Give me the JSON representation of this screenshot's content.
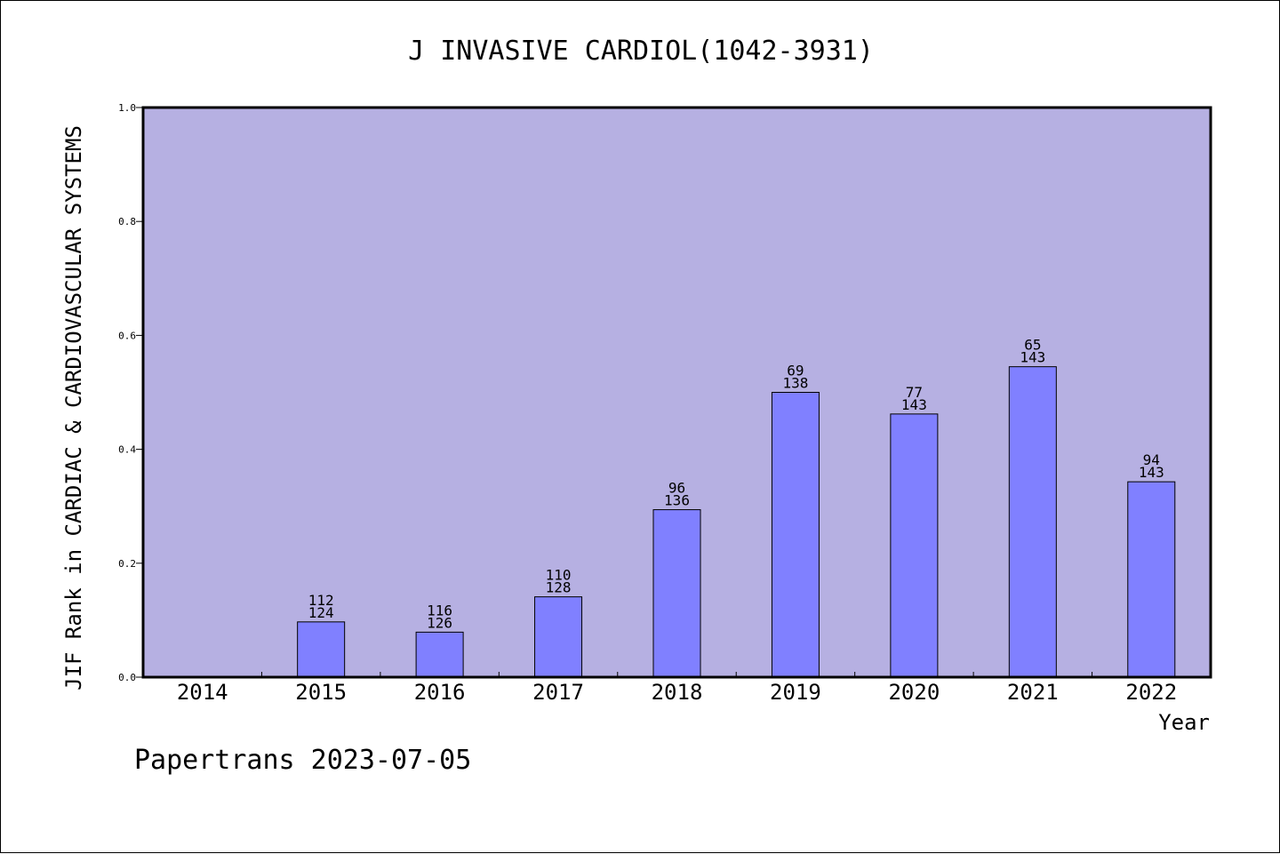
{
  "chart_data": {
    "type": "bar",
    "title": "J INVASIVE CARDIOL(1042-3931)",
    "xlabel": "Year",
    "ylabel": "JIF Rank in CARDIAC & CARDIOVASCULAR SYSTEMS",
    "ylim": [
      0,
      1.0
    ],
    "yticks": [
      "0.0",
      "0.2",
      "0.4",
      "0.6",
      "0.8",
      "1.0"
    ],
    "categories": [
      "2014",
      "2015",
      "2016",
      "2017",
      "2018",
      "2019",
      "2020",
      "2021",
      "2022"
    ],
    "values": [
      null,
      0.097,
      0.079,
      0.141,
      0.294,
      0.5,
      0.462,
      0.545,
      0.343
    ],
    "rank": [
      null,
      "112",
      "116",
      "110",
      "96",
      "69",
      "77",
      "65",
      "94"
    ],
    "total": [
      null,
      "124",
      "126",
      "128",
      "136",
      "138",
      "143",
      "143",
      "143"
    ],
    "plot_background": "#b6b0e2",
    "bar_color": "#8080ff",
    "grid": false
  },
  "footer": "Papertrans 2023-07-05"
}
